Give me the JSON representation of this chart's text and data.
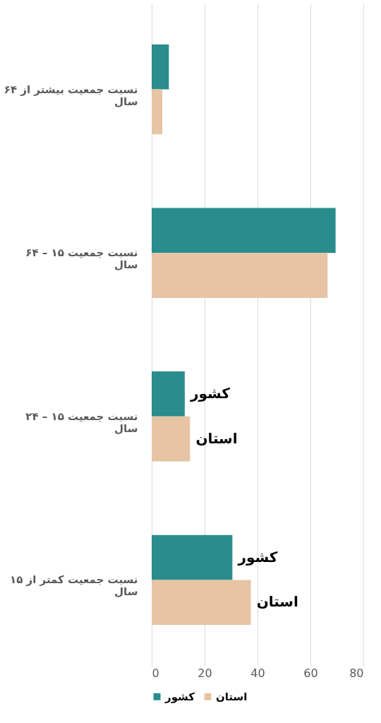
{
  "chart_data": {
    "type": "bar",
    "orientation": "horizontal",
    "categories": [
      "نسبت جمعیت بیشتر از ۶۴ سال",
      "نسبت جمعیت ۱۵ – ۶۴ سال",
      "نسبت جمعیت ۱۵ – ۲۴ سال",
      "نسبت جمعیت کمتر از ۱۵ سال"
    ],
    "series": [
      {
        "name": "کشور",
        "color": "#2a8c8c",
        "values": [
          6.5,
          69.5,
          12.5,
          30.5
        ]
      },
      {
        "name": "استان",
        "color": "#e6c4a4",
        "values": [
          4,
          66.5,
          14.5,
          37.5
        ]
      }
    ],
    "annotations": [
      "کشور",
      "استان",
      "کشور",
      "استان"
    ],
    "xlim": [
      0,
      80
    ],
    "xticks": [
      0,
      20,
      40,
      60,
      80
    ],
    "grid": "x",
    "legend": "bottom"
  }
}
